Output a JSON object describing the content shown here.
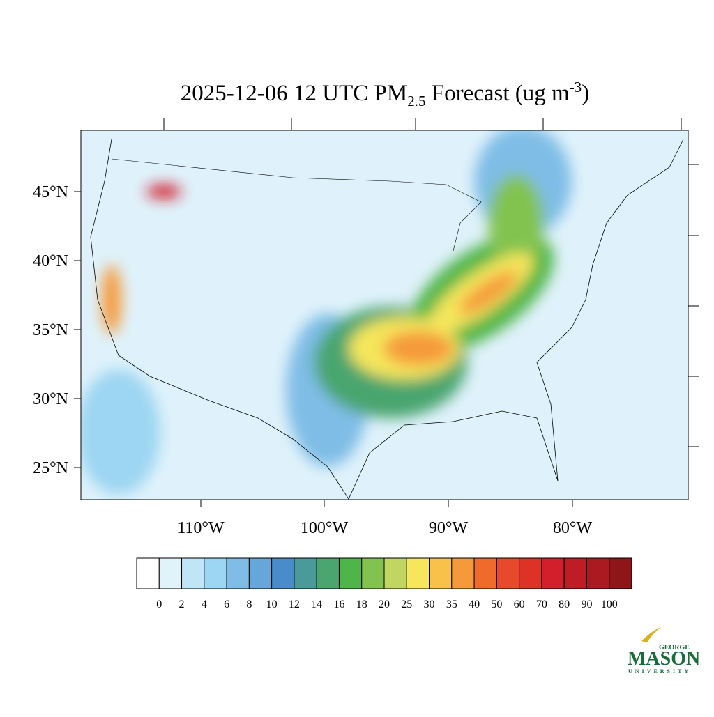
{
  "title": {
    "main": "2025-12-06 12 UTC PM",
    "sub": "2.5",
    "rest": " Forecast (ug m",
    "sup": "-3",
    "end": ")"
  },
  "map": {
    "lat_labels": [
      "45°N",
      "40°N",
      "35°N",
      "30°N",
      "25°N"
    ],
    "lon_labels": [
      "110°W",
      "100°W",
      "90°W",
      "80°W"
    ]
  },
  "colorbar": {
    "levels": [
      0,
      2,
      4,
      6,
      8,
      10,
      12,
      14,
      16,
      18,
      20,
      25,
      30,
      35,
      40,
      50,
      60,
      70,
      80,
      90,
      100
    ],
    "colors": [
      "#ffffff",
      "#e0f3fb",
      "#bfe6f6",
      "#9dd6f2",
      "#7fbde6",
      "#66a6d9",
      "#4a8cca",
      "#4a9a9a",
      "#4aa56e",
      "#4db54a",
      "#82c350",
      "#c0d660",
      "#f5e65c",
      "#f7c14a",
      "#f59a3b",
      "#f06a2b",
      "#e64a2b",
      "#dd3327",
      "#d21f2b",
      "#bf1d25",
      "#aa1a20",
      "#8e1518"
    ]
  },
  "logo": {
    "top": "GEORGE",
    "main": "MASON",
    "bottom": "UNIVERSITY"
  }
}
